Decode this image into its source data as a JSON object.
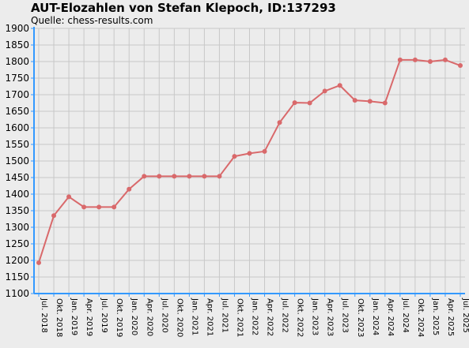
{
  "chart_data": {
    "type": "line",
    "title": "AUT-Elozahlen von Stefan Klepoch, ID:137293",
    "subtitle": "Quelle: chess-results.com",
    "xlabel": "",
    "ylabel": "",
    "ylim": [
      1100,
      1900
    ],
    "ytick_step": 50,
    "grid": true,
    "categories": [
      "Jul. 2018",
      "Okt. 2018",
      "Jan. 2019",
      "Apr. 2019",
      "Jul. 2019",
      "Okt. 2019",
      "Jan. 2020",
      "Apr. 2020",
      "Jul. 2020",
      "Okt. 2020",
      "Jan. 2021",
      "Apr. 2021",
      "Jul. 2021",
      "Okt. 2021",
      "Jan. 2022",
      "Apr. 2022",
      "Jul. 2022",
      "Okt. 2022",
      "Jan. 2023",
      "Apr. 2023",
      "Jul. 2023",
      "Okt. 2023",
      "Jan. 2024",
      "Apr. 2024",
      "Jul. 2024",
      "Okt. 2024",
      "Jan. 2025",
      "Apr. 2025",
      "Jul. 2025"
    ],
    "series": [
      {
        "color": "#d9696b",
        "values": [
          1193,
          1335,
          1392,
          1361,
          1361,
          1361,
          1415,
          1454,
          1454,
          1454,
          1454,
          1454,
          1454,
          1514,
          1523,
          1529,
          1616,
          1676,
          1675,
          1711,
          1728,
          1683,
          1680,
          1675,
          1805,
          1805,
          1800,
          1805,
          1788
        ]
      }
    ]
  },
  "colors": {
    "background": "#ececec",
    "grid": "#c8c8c8",
    "axis": "#3399ff",
    "line": "#d9696b"
  }
}
